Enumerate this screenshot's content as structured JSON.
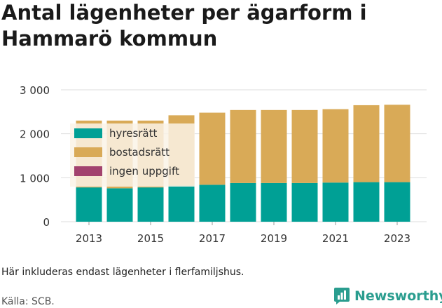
{
  "title": "Antal lägenheter per ägarform i Hammarö kommun",
  "note": "Här inkluderas endast lägenheter i flerfamiljshus.",
  "source": "Källa: SCB.",
  "brand": "Newsworthy",
  "colors": {
    "hyresratt": "#00a095",
    "bostadsratt": "#d9aa57",
    "ingen_uppgift": "#a2426e",
    "grid": "#dddddd",
    "legend_bg": "#faf3e6",
    "brand": "#2a9d8f"
  },
  "chart_data": {
    "type": "bar",
    "stacked": true,
    "categories": [
      "2013",
      "2014",
      "2015",
      "2016",
      "2017",
      "2018",
      "2019",
      "2020",
      "2021",
      "2022",
      "2023"
    ],
    "x_tick_labels": [
      "2013",
      "2015",
      "2017",
      "2019",
      "2021",
      "2023"
    ],
    "y_ticks": [
      0,
      1000,
      2000,
      3000
    ],
    "y_tick_labels": [
      "0",
      "1 000",
      "2 000",
      "3 000"
    ],
    "ylim": [
      0,
      3000
    ],
    "grid": true,
    "legend_placement": "top-left",
    "series": [
      {
        "name": "hyresrätt",
        "color_key": "hyresratt",
        "values": [
          780,
          760,
          780,
          820,
          840,
          880,
          880,
          880,
          890,
          900,
          900
        ]
      },
      {
        "name": "bostadsrätt",
        "color_key": "bostadsratt",
        "values": [
          1520,
          1540,
          1520,
          1600,
          1640,
          1660,
          1660,
          1660,
          1670,
          1750,
          1760
        ]
      },
      {
        "name": "ingen uppgift",
        "color_key": "ingen_uppgift",
        "values": [
          0,
          0,
          0,
          0,
          0,
          0,
          0,
          0,
          0,
          0,
          0
        ]
      }
    ]
  }
}
